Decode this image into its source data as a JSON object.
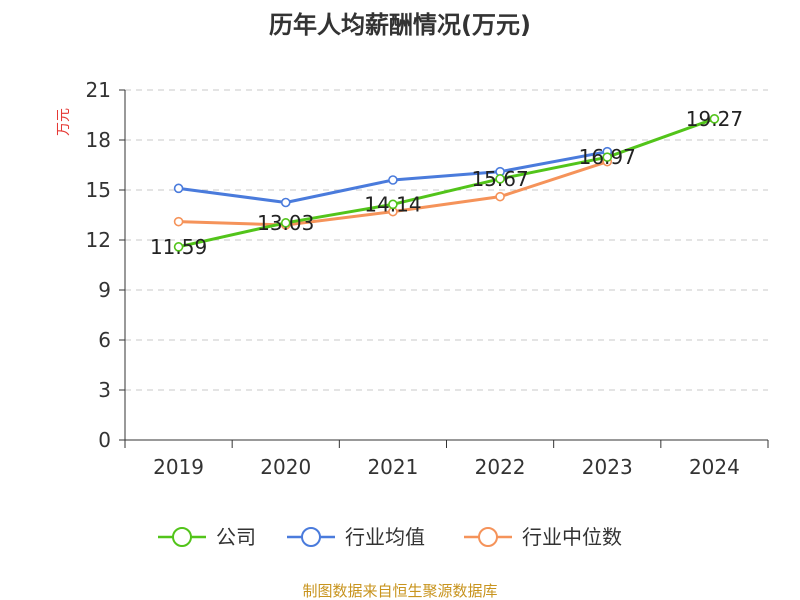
{
  "chart_data": {
    "type": "line",
    "title": "历年人均薪酬情况(万元)",
    "ylabel": "万元",
    "xlabel": "",
    "categories": [
      "2019",
      "2020",
      "2021",
      "2022",
      "2023",
      "2024"
    ],
    "ylim": [
      0,
      21
    ],
    "yticks": [
      0,
      3,
      6,
      9,
      12,
      15,
      18,
      21
    ],
    "grid": true,
    "legend_position": "bottom",
    "series": [
      {
        "name": "公司",
        "color": "#52c41a",
        "values": [
          11.59,
          13.03,
          14.14,
          15.67,
          16.97,
          19.27
        ],
        "labels": [
          "11.59",
          "13.03",
          "14.14",
          "15.67",
          "16.97",
          "19.27"
        ]
      },
      {
        "name": "行业均值",
        "color": "#4a7bdc",
        "values": [
          15.1,
          14.25,
          15.6,
          16.1,
          17.3,
          null
        ]
      },
      {
        "name": "行业中位数",
        "color": "#f5935a",
        "values": [
          13.1,
          12.9,
          13.7,
          14.6,
          16.7,
          null
        ]
      }
    ],
    "source": "制图数据来自恒生聚源数据库"
  }
}
